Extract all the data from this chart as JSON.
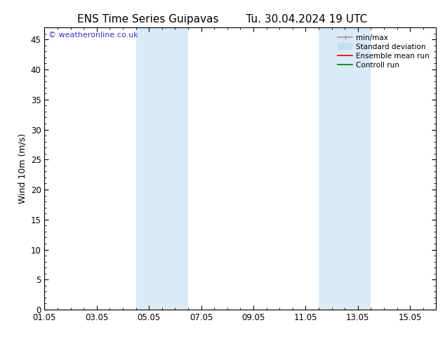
{
  "title_left": "ENS Time Series Guipavas",
  "title_right": "Tu. 30.04.2024 19 UTC",
  "ylabel": "Wind 10m (m/s)",
  "ylim": [
    0,
    47
  ],
  "yticks": [
    0,
    5,
    10,
    15,
    20,
    25,
    30,
    35,
    40,
    45
  ],
  "xtick_positions": [
    0,
    2,
    4,
    6,
    8,
    10,
    12,
    14
  ],
  "xtick_labels": [
    "01.05",
    "03.05",
    "05.05",
    "07.05",
    "09.05",
    "11.05",
    "13.05",
    "15.05"
  ],
  "xlim": [
    0,
    15
  ],
  "shaded_bands": [
    {
      "x_start": 3.5,
      "x_end": 5.5
    },
    {
      "x_start": 10.5,
      "x_end": 12.5
    }
  ],
  "shaded_color": "#daeaf7",
  "background_color": "#ffffff",
  "watermark_text": "© weatheronline.co.uk",
  "watermark_color": "#3333cc",
  "legend_items": [
    {
      "label": "min/max",
      "color": "#999999",
      "lw": 1.2
    },
    {
      "label": "Standard deviation",
      "color": "#c5dff0",
      "lw": 7
    },
    {
      "label": "Ensemble mean run",
      "color": "#dd0000",
      "lw": 1.2
    },
    {
      "label": "Controll run",
      "color": "#007700",
      "lw": 1.2
    }
  ],
  "title_fontsize": 11,
  "ylabel_fontsize": 9,
  "tick_fontsize": 8.5,
  "watermark_fontsize": 8,
  "legend_fontsize": 7.5
}
